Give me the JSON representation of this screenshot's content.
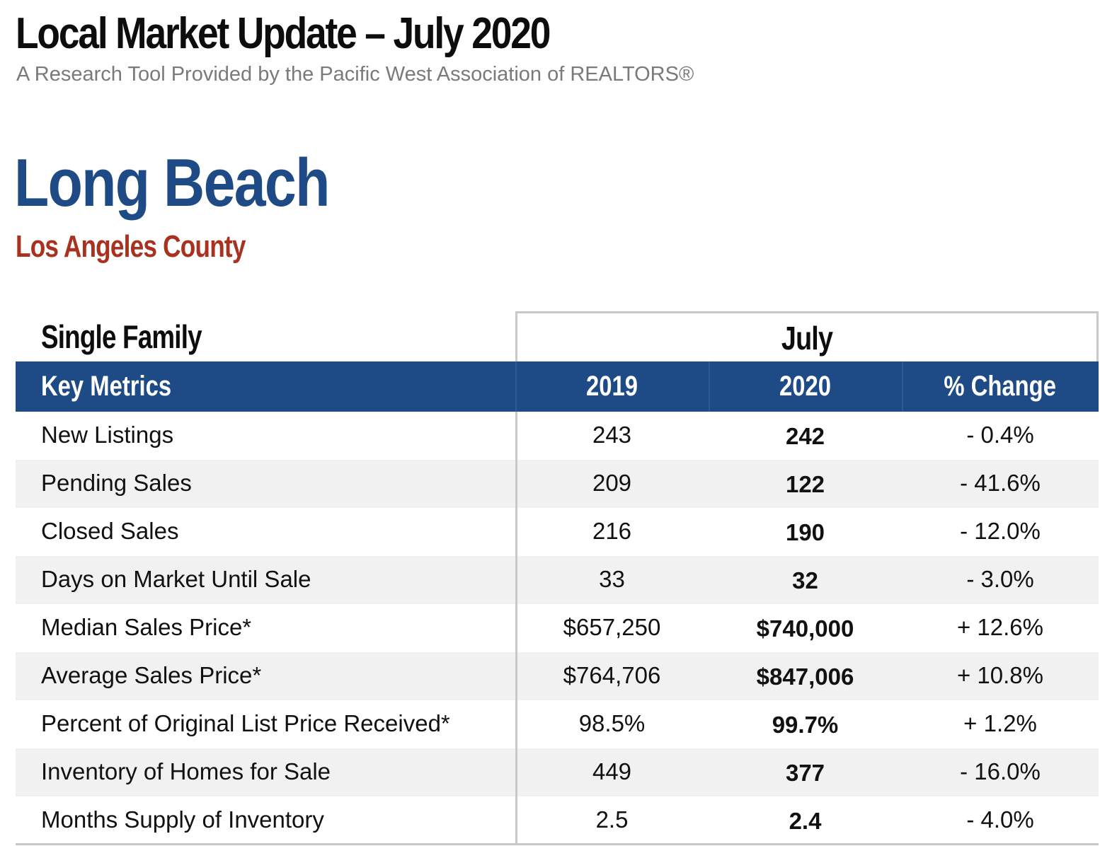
{
  "header": {
    "title": "Local Market Update – July 2020",
    "subtitle": "A Research Tool Provided by the Pacific West Association of REALTORS®"
  },
  "location": {
    "city": "Long Beach",
    "county": "Los Angeles County"
  },
  "colors": {
    "header_blue": "#1e4b86",
    "county_red": "#a8321f",
    "subtitle_gray": "#7a7a7a",
    "row_shade": "#f1f1f1"
  },
  "table": {
    "section_label": "Single Family",
    "period_label": "July",
    "columns": {
      "metric": "Key Metrics",
      "year1": "2019",
      "year2": "2020",
      "change": "% Change"
    },
    "rows": [
      {
        "metric": "New Listings",
        "year1": "243",
        "year2": "242",
        "change": "- 0.4%"
      },
      {
        "metric": "Pending Sales",
        "year1": "209",
        "year2": "122",
        "change": "- 41.6%"
      },
      {
        "metric": "Closed Sales",
        "year1": "216",
        "year2": "190",
        "change": "- 12.0%"
      },
      {
        "metric": "Days on Market Until Sale",
        "year1": "33",
        "year2": "32",
        "change": "- 3.0%"
      },
      {
        "metric": "Median Sales Price*",
        "year1": "$657,250",
        "year2": "$740,000",
        "change": "+ 12.6%"
      },
      {
        "metric": "Average Sales Price*",
        "year1": "$764,706",
        "year2": "$847,006",
        "change": "+ 10.8%"
      },
      {
        "metric": "Percent of Original List Price Received*",
        "year1": "98.5%",
        "year2": "99.7%",
        "change": "+ 1.2%"
      },
      {
        "metric": "Inventory of Homes for Sale",
        "year1": "449",
        "year2": "377",
        "change": "- 16.0%"
      },
      {
        "metric": "Months Supply of Inventory",
        "year1": "2.5",
        "year2": "2.4",
        "change": "- 4.0%"
      }
    ]
  }
}
